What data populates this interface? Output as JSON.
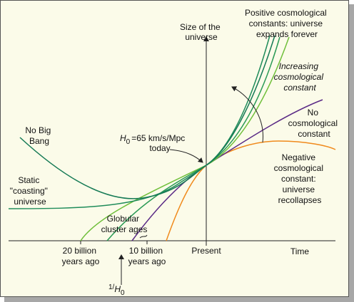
{
  "y_axis_label": [
    "Size of the",
    "universe"
  ],
  "x_axis_label": "Time",
  "positive_label": [
    "Positive cosmological",
    "constants: universe",
    "expands forever"
  ],
  "increasing_label": [
    "Increasing",
    "cosmological",
    "constant"
  ],
  "no_constant_label": [
    "No",
    "cosmological",
    "constant"
  ],
  "negative_label": [
    "Negative",
    "cosmological",
    "constant:",
    "universe",
    "recollapses"
  ],
  "no_big_bang_label": [
    "No Big",
    "Bang"
  ],
  "static_label": [
    "Static",
    "\"coasting\"",
    "universe"
  ],
  "hubble_label": {
    "symbol": "H",
    "subscript": "0",
    "value": "=65 km/s/Mpc",
    "line2": "today"
  },
  "globular_label": [
    "Globular",
    "cluster ages"
  ],
  "tick_20": [
    "20 billion",
    "years ago"
  ],
  "tick_10": [
    "10 billion",
    "years ago"
  ],
  "tick_present": "Present",
  "hubble_time": {
    "prefix": "1/",
    "symbol": "H",
    "subscript": "0"
  }
}
